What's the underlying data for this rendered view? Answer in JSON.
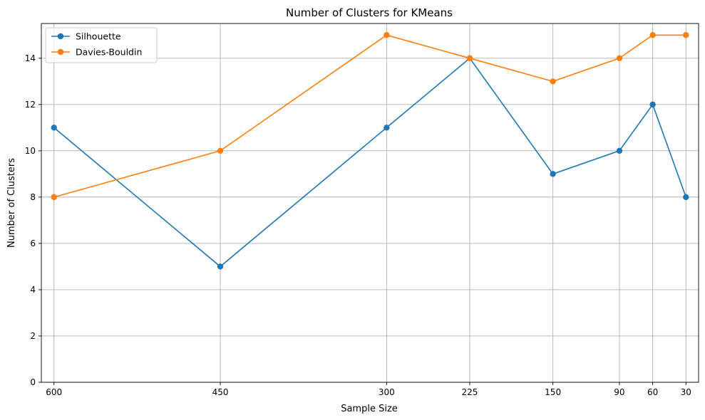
{
  "chart_data": {
    "type": "line",
    "title": "Number of Clusters for KMeans",
    "xlabel": "Sample Size",
    "ylabel": "Number of Clusters",
    "x": [
      600,
      450,
      300,
      225,
      150,
      90,
      60,
      30
    ],
    "x_reversed": true,
    "ylim": [
      0,
      15.5
    ],
    "yticks": [
      0,
      2,
      4,
      6,
      8,
      10,
      12,
      14
    ],
    "grid": true,
    "legend_position": "top-left",
    "series": [
      {
        "name": "Silhouette",
        "color": "#1f77b4",
        "marker": "circle",
        "values": [
          11,
          5,
          11,
          14,
          9,
          10,
          12,
          8
        ]
      },
      {
        "name": "Davies-Bouldin",
        "color": "#ff7f0e",
        "marker": "circle",
        "values": [
          8,
          10,
          15,
          14,
          13,
          14,
          15,
          15
        ]
      }
    ]
  }
}
